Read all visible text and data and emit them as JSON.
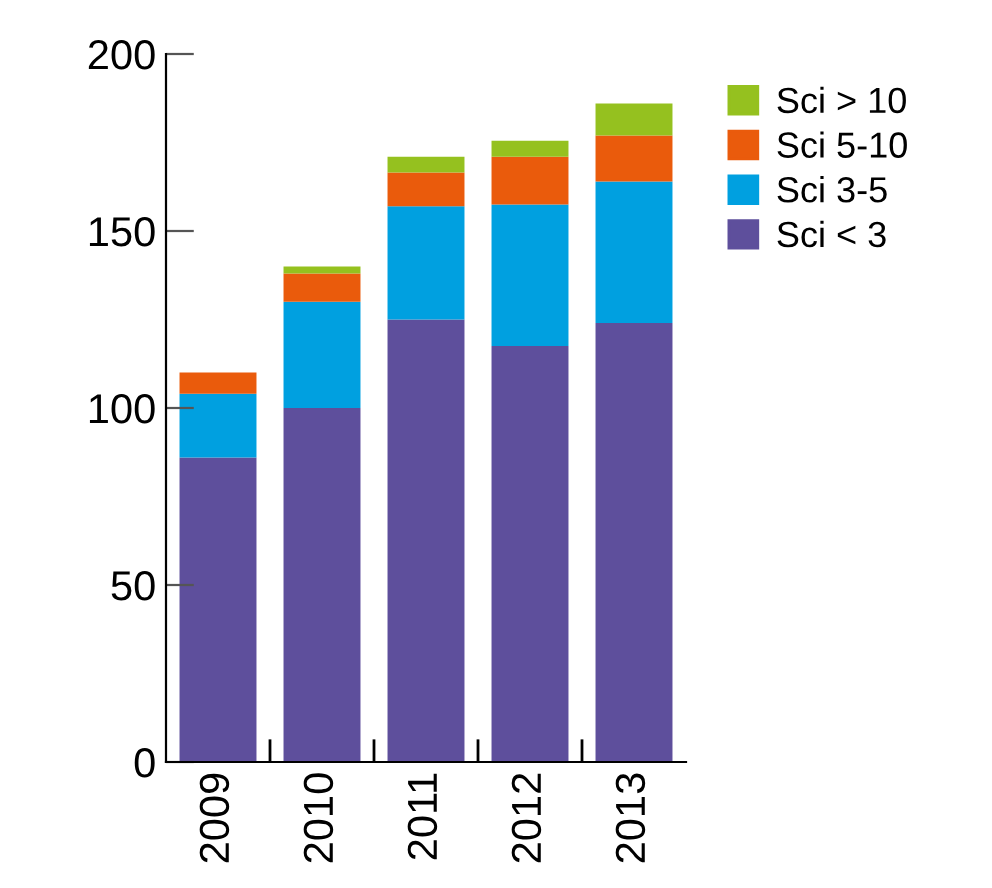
{
  "chart_data": {
    "type": "bar",
    "stacked": true,
    "categories": [
      "2009",
      "2010",
      "2011",
      "2012",
      "2013"
    ],
    "series": [
      {
        "name": "Sci < 3",
        "color": "#5e4f9c",
        "values": [
          86,
          100,
          125,
          117.5,
          124
        ]
      },
      {
        "name": "Sci 3-5",
        "color": "#00a0e0",
        "values": [
          18,
          30,
          32,
          40,
          40
        ]
      },
      {
        "name": "Sci 5-10",
        "color": "#ea5b0c",
        "values": [
          6,
          8,
          9.5,
          13.5,
          13
        ]
      },
      {
        "name": "Sci > 10",
        "color": "#95c11f",
        "values": [
          0,
          2,
          4.5,
          4.5,
          9
        ]
      }
    ],
    "ylim": [
      0,
      200
    ],
    "yticks": [
      0,
      50,
      100,
      150,
      200
    ],
    "grid": false,
    "legend": "top right"
  }
}
